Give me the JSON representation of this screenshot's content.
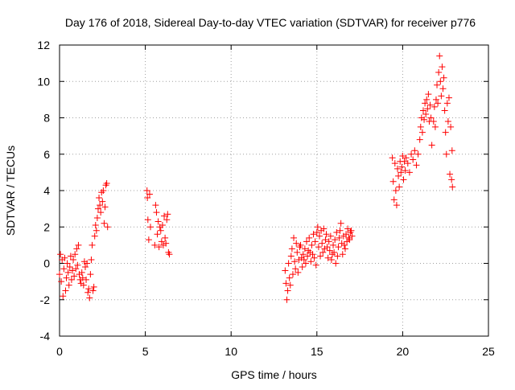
{
  "chart_data": {
    "type": "scatter",
    "title": "Day 176 of 2018, Sidereal Day-to-day VTEC variation (SDTVAR) for receiver p776",
    "xlabel": "GPS time / hours",
    "ylabel": "SDTVAR / TECUs",
    "xlim": [
      0,
      25
    ],
    "ylim": [
      -4,
      12
    ],
    "xticks": [
      0,
      5,
      10,
      15,
      20,
      25
    ],
    "yticks": [
      -4,
      -2,
      0,
      2,
      4,
      6,
      8,
      10,
      12
    ],
    "grid": true,
    "marker": "+",
    "marker_color": "#ff0000",
    "series": [
      {
        "name": "SDTVAR",
        "points": [
          [
            0.0,
            -0.6
          ],
          [
            0.05,
            0.5
          ],
          [
            0.1,
            -1.0
          ],
          [
            0.15,
            0.2
          ],
          [
            0.2,
            -1.8
          ],
          [
            0.25,
            -0.3
          ],
          [
            0.3,
            0.3
          ],
          [
            0.35,
            -1.5
          ],
          [
            0.4,
            -0.8
          ],
          [
            0.45,
            0.0
          ],
          [
            0.5,
            -0.5
          ],
          [
            0.55,
            -1.2
          ],
          [
            0.6,
            -0.2
          ],
          [
            0.65,
            0.4
          ],
          [
            0.7,
            -0.9
          ],
          [
            0.75,
            -0.4
          ],
          [
            0.8,
            0.2
          ],
          [
            0.85,
            -0.7
          ],
          [
            0.9,
            0.5
          ],
          [
            0.95,
            -0.3
          ],
          [
            1.0,
            0.8
          ],
          [
            1.05,
            -0.1
          ],
          [
            1.1,
            1.0
          ],
          [
            1.15,
            -0.6
          ],
          [
            1.2,
            -0.9
          ],
          [
            1.25,
            -1.1
          ],
          [
            1.3,
            -0.5
          ],
          [
            1.35,
            -0.8
          ],
          [
            1.4,
            -1.2
          ],
          [
            1.45,
            0.1
          ],
          [
            1.5,
            -0.2
          ],
          [
            1.55,
            -0.9
          ],
          [
            1.6,
            0.0
          ],
          [
            1.65,
            -1.6
          ],
          [
            1.7,
            -1.4
          ],
          [
            1.75,
            -1.9
          ],
          [
            1.8,
            -0.6
          ],
          [
            1.85,
            0.2
          ],
          [
            1.9,
            1.0
          ],
          [
            1.95,
            -1.5
          ],
          [
            2.0,
            -1.3
          ],
          [
            2.05,
            1.5
          ],
          [
            2.1,
            2.1
          ],
          [
            2.15,
            1.8
          ],
          [
            2.2,
            2.5
          ],
          [
            2.25,
            3.0
          ],
          [
            2.3,
            3.6
          ],
          [
            2.35,
            3.2
          ],
          [
            2.4,
            2.8
          ],
          [
            2.45,
            3.9
          ],
          [
            2.5,
            3.4
          ],
          [
            2.55,
            4.0
          ],
          [
            2.6,
            2.2
          ],
          [
            2.65,
            3.1
          ],
          [
            2.7,
            4.3
          ],
          [
            2.75,
            4.4
          ],
          [
            2.8,
            2.0
          ],
          [
            5.1,
            4.0
          ],
          [
            5.12,
            3.6
          ],
          [
            5.15,
            2.4
          ],
          [
            5.2,
            1.3
          ],
          [
            5.25,
            3.8
          ],
          [
            5.3,
            2.0
          ],
          [
            5.55,
            1.0
          ],
          [
            5.6,
            3.2
          ],
          [
            5.65,
            2.8
          ],
          [
            5.7,
            1.6
          ],
          [
            5.75,
            2.3
          ],
          [
            5.8,
            0.9
          ],
          [
            5.85,
            2.0
          ],
          [
            5.9,
            1.8
          ],
          [
            5.95,
            1.2
          ],
          [
            6.0,
            2.1
          ],
          [
            6.05,
            1.0
          ],
          [
            6.1,
            2.6
          ],
          [
            6.15,
            1.4
          ],
          [
            6.2,
            1.1
          ],
          [
            6.25,
            2.4
          ],
          [
            6.3,
            2.7
          ],
          [
            6.35,
            0.6
          ],
          [
            6.4,
            0.5
          ],
          [
            13.15,
            -0.4
          ],
          [
            13.2,
            -1.1
          ],
          [
            13.25,
            -2.0
          ],
          [
            13.3,
            -1.5
          ],
          [
            13.35,
            0.0
          ],
          [
            13.4,
            -0.8
          ],
          [
            13.45,
            -1.2
          ],
          [
            13.5,
            0.4
          ],
          [
            13.55,
            0.8
          ],
          [
            13.6,
            -0.6
          ],
          [
            13.65,
            1.4
          ],
          [
            13.7,
            0.1
          ],
          [
            13.75,
            -0.3
          ],
          [
            13.8,
            1.1
          ],
          [
            13.85,
            0.6
          ],
          [
            13.9,
            -0.5
          ],
          [
            13.95,
            0.2
          ],
          [
            14.0,
            0.9
          ],
          [
            14.05,
            1.0
          ],
          [
            14.1,
            0.3
          ],
          [
            14.15,
            -0.2
          ],
          [
            14.2,
            0.5
          ],
          [
            14.25,
            0.2
          ],
          [
            14.3,
            0.8
          ],
          [
            14.35,
            0.0
          ],
          [
            14.4,
            1.2
          ],
          [
            14.45,
            0.4
          ],
          [
            14.5,
            0.7
          ],
          [
            14.55,
            1.4
          ],
          [
            14.6,
            0.6
          ],
          [
            14.65,
            0.1
          ],
          [
            14.7,
            1.0
          ],
          [
            14.75,
            0.5
          ],
          [
            14.8,
            1.6
          ],
          [
            14.85,
            0.3
          ],
          [
            14.9,
            1.2
          ],
          [
            14.95,
            -0.1
          ],
          [
            15.0,
            1.7
          ],
          [
            15.05,
            2.0
          ],
          [
            15.1,
            0.9
          ],
          [
            15.15,
            1.5
          ],
          [
            15.2,
            0.4
          ],
          [
            15.25,
            1.8
          ],
          [
            15.3,
            1.1
          ],
          [
            15.35,
            0.6
          ],
          [
            15.4,
            1.9
          ],
          [
            15.45,
            0.8
          ],
          [
            15.5,
            1.3
          ],
          [
            15.55,
            1.6
          ],
          [
            15.6,
            0.9
          ],
          [
            15.65,
            0.3
          ],
          [
            15.7,
            1.2
          ],
          [
            15.75,
            0.7
          ],
          [
            15.8,
            1.5
          ],
          [
            15.85,
            0.2
          ],
          [
            15.9,
            0.5
          ],
          [
            15.95,
            1.0
          ],
          [
            16.0,
            0.6
          ],
          [
            16.05,
            1.3
          ],
          [
            16.1,
            0.0
          ],
          [
            16.15,
            1.7
          ],
          [
            16.2,
            0.4
          ],
          [
            16.25,
            0.9
          ],
          [
            16.3,
            1.4
          ],
          [
            16.35,
            1.8
          ],
          [
            16.4,
            2.2
          ],
          [
            16.45,
            1.1
          ],
          [
            16.5,
            0.5
          ],
          [
            16.55,
            1.5
          ],
          [
            16.6,
            1.0
          ],
          [
            16.65,
            0.8
          ],
          [
            16.7,
            1.6
          ],
          [
            16.75,
            1.2
          ],
          [
            16.8,
            1.9
          ],
          [
            16.85,
            1.4
          ],
          [
            16.9,
            1.3
          ],
          [
            16.95,
            1.7
          ],
          [
            17.0,
            1.8
          ],
          [
            17.05,
            1.5
          ],
          [
            19.4,
            5.8
          ],
          [
            19.45,
            4.5
          ],
          [
            19.5,
            3.5
          ],
          [
            19.55,
            5.5
          ],
          [
            19.6,
            4.0
          ],
          [
            19.65,
            3.2
          ],
          [
            19.7,
            5.2
          ],
          [
            19.75,
            4.8
          ],
          [
            19.8,
            4.2
          ],
          [
            19.85,
            5.6
          ],
          [
            19.9,
            5.0
          ],
          [
            19.95,
            5.3
          ],
          [
            20.0,
            5.9
          ],
          [
            20.05,
            4.6
          ],
          [
            20.1,
            5.6
          ],
          [
            20.15,
            5.1
          ],
          [
            20.2,
            5.8
          ],
          [
            20.3,
            5.5
          ],
          [
            20.4,
            5.0
          ],
          [
            20.5,
            6.0
          ],
          [
            20.6,
            5.7
          ],
          [
            20.7,
            6.2
          ],
          [
            20.8,
            5.4
          ],
          [
            20.9,
            6.0
          ],
          [
            21.0,
            6.8
          ],
          [
            21.05,
            7.5
          ],
          [
            21.1,
            8.0
          ],
          [
            21.15,
            7.2
          ],
          [
            21.2,
            8.4
          ],
          [
            21.25,
            7.9
          ],
          [
            21.3,
            8.8
          ],
          [
            21.35,
            8.2
          ],
          [
            21.4,
            9.0
          ],
          [
            21.45,
            8.5
          ],
          [
            21.5,
            9.3
          ],
          [
            21.55,
            7.8
          ],
          [
            21.6,
            8.7
          ],
          [
            21.65,
            8.0
          ],
          [
            21.7,
            6.5
          ],
          [
            21.8,
            7.8
          ],
          [
            21.85,
            8.6
          ],
          [
            21.9,
            7.5
          ],
          [
            21.95,
            9.0
          ],
          [
            22.0,
            9.8
          ],
          [
            22.05,
            8.8
          ],
          [
            22.1,
            10.5
          ],
          [
            22.15,
            11.4
          ],
          [
            22.2,
            10.0
          ],
          [
            22.25,
            9.2
          ],
          [
            22.3,
            10.8
          ],
          [
            22.35,
            9.6
          ],
          [
            22.4,
            10.2
          ],
          [
            22.45,
            8.4
          ],
          [
            22.5,
            7.2
          ],
          [
            22.55,
            6.0
          ],
          [
            22.6,
            8.8
          ],
          [
            22.65,
            7.8
          ],
          [
            22.7,
            9.1
          ],
          [
            22.75,
            4.9
          ],
          [
            22.8,
            7.5
          ],
          [
            22.85,
            4.6
          ],
          [
            22.88,
            6.2
          ],
          [
            22.9,
            4.2
          ]
        ]
      }
    ]
  }
}
